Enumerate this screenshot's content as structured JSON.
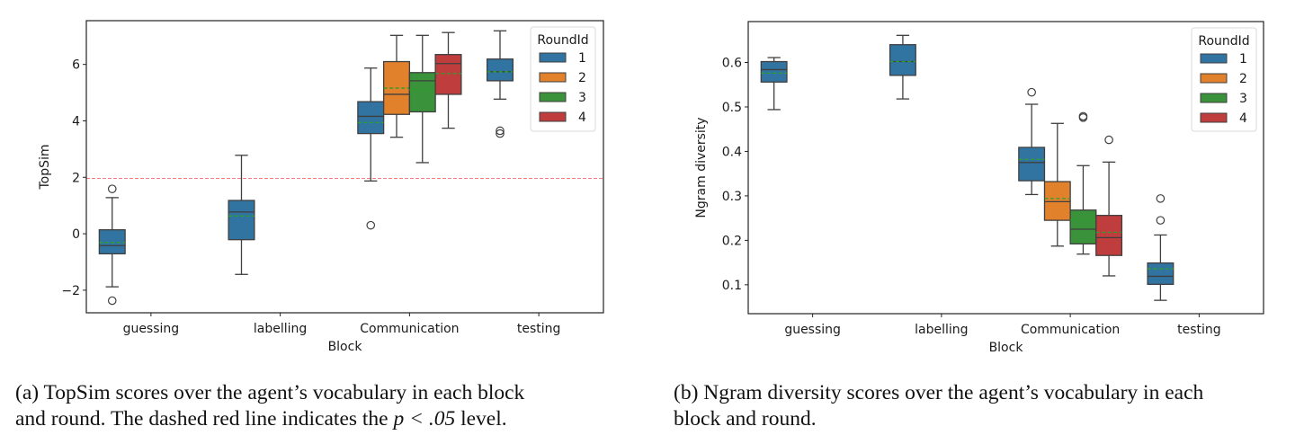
{
  "palette": {
    "round_1": "#3274a1",
    "round_2": "#e1812c",
    "round_3": "#3a923a",
    "round_4": "#c03d3e",
    "box_edge": "#3f3f3f",
    "mean_line": "#2ca02c",
    "threshold_line": "#f08080"
  },
  "captions": {
    "a_line1": "(a) TopSim scores over the agent’s vocabulary in each block",
    "a_line2_pre": "and round. The dashed red line indicates the ",
    "a_line2_math": "p < .05",
    "a_line2_post": " level.",
    "b_line1": "(b) Ngram diversity scores over the agent’s vocabulary in each",
    "b_line2": "block and round."
  },
  "chart_data": [
    {
      "id": "topsim",
      "type": "box",
      "title": "",
      "xlabel": "Block",
      "ylabel": "TopSim",
      "categories": [
        "guessing",
        "labelling",
        "Communication",
        "testing"
      ],
      "hue_name": "RoundId",
      "hue_levels": [
        "1",
        "2",
        "3",
        "4"
      ],
      "ylim": [
        -2.8,
        7.55
      ],
      "yticks": [
        -2,
        0,
        2,
        4,
        6
      ],
      "ytick_labels": [
        "−2",
        "0",
        "2",
        "4",
        "6"
      ],
      "grid": false,
      "legend": {
        "title": "RoundId",
        "entries": [
          "1",
          "2",
          "3",
          "4"
        ],
        "placement": "top-right"
      },
      "reference_line": {
        "y": 1.96,
        "style": "dashed",
        "color": "red",
        "meaning": "p < .05 level"
      },
      "boxes": [
        {
          "category": "guessing",
          "round": "1",
          "whisker_low": -1.88,
          "q1": -0.71,
          "median": -0.42,
          "mean": -0.31,
          "q3": 0.14,
          "whisker_high": 1.28,
          "outliers": [
            1.59,
            -2.37
          ]
        },
        {
          "category": "labelling",
          "round": "1",
          "whisker_low": -1.44,
          "q1": -0.21,
          "median": 0.77,
          "mean": 0.63,
          "q3": 1.18,
          "whisker_high": 2.78,
          "outliers": []
        },
        {
          "category": "Communication",
          "round": "1",
          "whisker_low": 1.87,
          "q1": 3.55,
          "median": 4.16,
          "mean": 3.94,
          "q3": 4.68,
          "whisker_high": 5.87,
          "outliers": [
            0.3
          ]
        },
        {
          "category": "Communication",
          "round": "2",
          "whisker_low": 3.42,
          "q1": 4.23,
          "median": 4.94,
          "mean": 5.16,
          "q3": 6.1,
          "whisker_high": 7.03,
          "outliers": []
        },
        {
          "category": "Communication",
          "round": "3",
          "whisker_low": 2.52,
          "q1": 4.32,
          "median": 5.42,
          "mean": 5.1,
          "q3": 5.71,
          "whisker_high": 7.03,
          "outliers": []
        },
        {
          "category": "Communication",
          "round": "4",
          "whisker_low": 3.74,
          "q1": 4.94,
          "median": 6.03,
          "mean": 5.68,
          "q3": 6.35,
          "whisker_high": 7.13,
          "outliers": []
        },
        {
          "category": "testing",
          "round": "1",
          "whisker_low": 4.77,
          "q1": 5.42,
          "median": 5.74,
          "mean": 5.74,
          "q3": 6.19,
          "whisker_high": 7.19,
          "outliers": [
            3.65,
            3.55
          ]
        }
      ]
    },
    {
      "id": "ngram",
      "type": "box",
      "title": "",
      "xlabel": "Block",
      "ylabel": "Ngram diversity",
      "categories": [
        "guessing",
        "labelling",
        "Communication",
        "testing"
      ],
      "hue_name": "RoundId",
      "hue_levels": [
        "1",
        "2",
        "3",
        "4"
      ],
      "ylim": [
        0.035,
        0.692
      ],
      "yticks": [
        0.1,
        0.2,
        0.3,
        0.4,
        0.5,
        0.6
      ],
      "ytick_labels": [
        "0.1",
        "0.2",
        "0.3",
        "0.4",
        "0.5",
        "0.6"
      ],
      "grid": false,
      "legend": {
        "title": "RoundId",
        "entries": [
          "1",
          "2",
          "3",
          "4"
        ],
        "placement": "top-right"
      },
      "boxes": [
        {
          "category": "guessing",
          "round": "1",
          "whisker_low": 0.494,
          "q1": 0.556,
          "median": 0.584,
          "mean": 0.576,
          "q3": 0.602,
          "whisker_high": 0.611,
          "outliers": []
        },
        {
          "category": "labelling",
          "round": "1",
          "whisker_low": 0.518,
          "q1": 0.571,
          "median": 0.602,
          "mean": 0.602,
          "q3": 0.64,
          "whisker_high": 0.661,
          "outliers": []
        },
        {
          "category": "Communication",
          "round": "1",
          "whisker_low": 0.303,
          "q1": 0.334,
          "median": 0.375,
          "mean": 0.382,
          "q3": 0.409,
          "whisker_high": 0.506,
          "outliers": [
            0.533
          ]
        },
        {
          "category": "Communication",
          "round": "2",
          "whisker_low": 0.187,
          "q1": 0.245,
          "median": 0.287,
          "mean": 0.294,
          "q3": 0.332,
          "whisker_high": 0.463,
          "outliers": []
        },
        {
          "category": "Communication",
          "round": "3",
          "whisker_low": 0.169,
          "q1": 0.192,
          "median": 0.225,
          "mean": 0.246,
          "q3": 0.268,
          "whisker_high": 0.368,
          "outliers": [
            0.479,
            0.476
          ]
        },
        {
          "category": "Communication",
          "round": "4",
          "whisker_low": 0.12,
          "q1": 0.166,
          "median": 0.206,
          "mean": 0.218,
          "q3": 0.256,
          "whisker_high": 0.376,
          "outliers": [
            0.426
          ]
        },
        {
          "category": "testing",
          "round": "1",
          "whisker_low": 0.065,
          "q1": 0.101,
          "median": 0.119,
          "mean": 0.136,
          "q3": 0.149,
          "whisker_high": 0.212,
          "outliers": [
            0.294,
            0.245
          ]
        }
      ]
    }
  ]
}
